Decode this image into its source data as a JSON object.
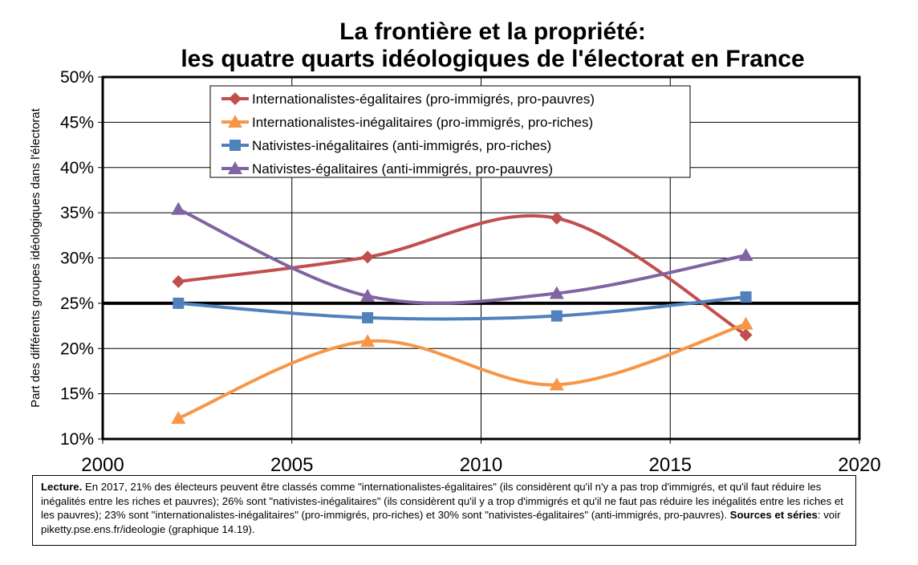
{
  "chart_data": {
    "type": "line",
    "title": [
      "La frontière et la propriété:",
      "les quatre quarts idéologiques de l'électorat en France"
    ],
    "ylabel": "Part des différents groupes idéologiques dans l'électorat",
    "xlabel": "",
    "xlim": [
      2000,
      2020
    ],
    "ylim": [
      0.1,
      0.5
    ],
    "x_ticks": [
      "2000",
      "2005",
      "2010",
      "2015",
      "2020"
    ],
    "y_ticks": [
      "10%",
      "15%",
      "20%",
      "25%",
      "30%",
      "35%",
      "40%",
      "45%",
      "50%"
    ],
    "grid": true,
    "reference_line": 0.25,
    "legend_position": "top-center",
    "x": [
      2002,
      2007,
      2012,
      2017
    ],
    "series": [
      {
        "name": "Internationalistes-égalitaires (pro-immigrés, pro-pauvres)",
        "marker": "diamond",
        "color": "#c0504d",
        "values": [
          0.274,
          0.301,
          0.344,
          0.215
        ]
      },
      {
        "name": "Internationalistes-inégalitaires (pro-immigrés, pro-riches)",
        "marker": "triangle",
        "color": "#f79646",
        "values": [
          0.123,
          0.208,
          0.16,
          0.227
        ]
      },
      {
        "name": "Nativistes-inégalitaires (anti-immigrés, pro-riches)",
        "marker": "square",
        "color": "#4f81bd",
        "values": [
          0.25,
          0.234,
          0.236,
          0.257
        ]
      },
      {
        "name": "Nativistes-égalitaires (anti-immigrés, pro-pauvres)",
        "marker": "triangle",
        "color": "#8064a2",
        "values": [
          0.354,
          0.258,
          0.261,
          0.303
        ]
      }
    ]
  },
  "note": {
    "lecture_label": "Lecture.",
    "lecture_text": " En 2017, 21% des électeurs peuvent être classés comme \"internationalistes-égalitaires\" (ils considèrent qu'il n'y a pas trop d'immigrés, et qu'il faut réduire les inégalités entre les riches et pauvres); 26% sont \"nativistes-inégalitaires\" (ils considèrent qu'il y a trop d'immigrés et qu'il ne faut pas réduire les inégalités entre les riches et les pauvres); 23% sont \"internationalistes-inégalitaires\" (pro-immigrés, pro-riches) et 30% sont \"nativistes-égalitaires\" (anti-immigrés, pro-pauvres). ",
    "sources_label": "Sources et séries",
    "sources_text": ": voir piketty.pse.ens.fr/ideologie (graphique 14.19)."
  }
}
